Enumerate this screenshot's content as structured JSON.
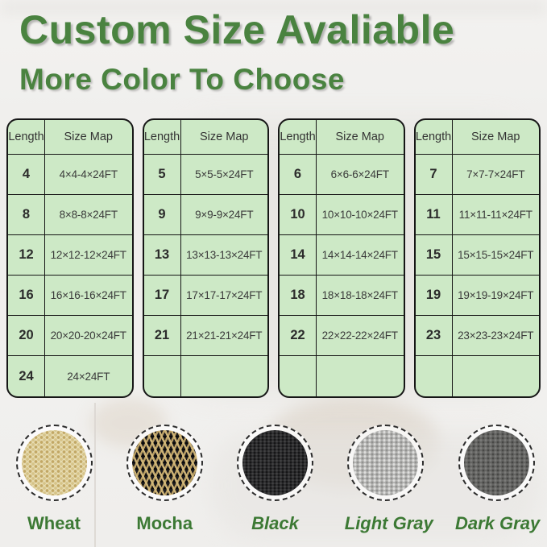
{
  "title": "Custom Size Avaliable",
  "subtitle": "More Color To Choose",
  "colors": {
    "heading_green": "#4a8340",
    "label_green": "#3c7934",
    "table_background": "#cde9c6",
    "table_border": "#161616"
  },
  "table_headers": [
    "Length",
    "Size Map"
  ],
  "tables": [
    {
      "rows": [
        [
          "4",
          "4×4-4×24FT"
        ],
        [
          "8",
          "8×8-8×24FT"
        ],
        [
          "12",
          "12×12-12×24FT"
        ],
        [
          "16",
          "16×16-16×24FT"
        ],
        [
          "20",
          "20×20-20×24FT"
        ],
        [
          "24",
          "24×24FT"
        ]
      ]
    },
    {
      "rows": [
        [
          "5",
          "5×5-5×24FT"
        ],
        [
          "9",
          "9×9-9×24FT"
        ],
        [
          "13",
          "13×13-13×24FT"
        ],
        [
          "17",
          "17×17-17×24FT"
        ],
        [
          "21",
          "21×21-21×24FT"
        ],
        [
          "",
          ""
        ]
      ]
    },
    {
      "rows": [
        [
          "6",
          "6×6-6×24FT"
        ],
        [
          "10",
          "10×10-10×24FT"
        ],
        [
          "14",
          "14×14-14×24FT"
        ],
        [
          "18",
          "18×18-18×24FT"
        ],
        [
          "22",
          "22×22-22×24FT"
        ],
        [
          "",
          ""
        ]
      ]
    },
    {
      "rows": [
        [
          "7",
          "7×7-7×24FT"
        ],
        [
          "11",
          "11×11-11×24FT"
        ],
        [
          "15",
          "15×15-15×24FT"
        ],
        [
          "19",
          "19×19-19×24FT"
        ],
        [
          "23",
          "23×23-23×24FT"
        ],
        [
          "",
          ""
        ]
      ]
    }
  ],
  "swatches": [
    {
      "label": "Wheat",
      "color_hex": "#e7dcb2"
    },
    {
      "label": "Mocha",
      "color_hex": "#6b5a33"
    },
    {
      "label": "Black",
      "color_hex": "#2b2b2d"
    },
    {
      "label": "Light Gray",
      "color_hex": "#b5b5b3"
    },
    {
      "label": "Dark Gray",
      "color_hex": "#656563"
    }
  ]
}
